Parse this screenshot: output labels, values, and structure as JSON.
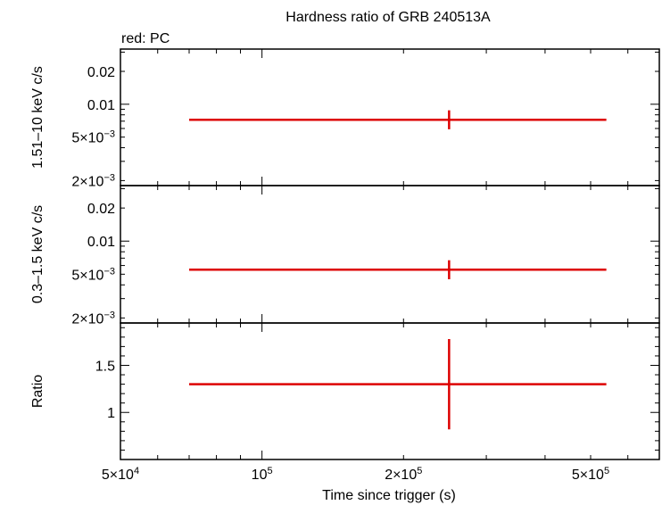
{
  "chart_data": {
    "type": "scatter",
    "title": "Hardness ratio of GRB 240513A",
    "subtitle": "red: PC",
    "xlabel": "Time since trigger (s)",
    "xscale": "log",
    "xlim": [
      50000,
      700000
    ],
    "x_tick_labels": [
      {
        "value": 50000,
        "mant": "5×10",
        "exp": "4"
      },
      {
        "value": 100000,
        "mant": "10",
        "exp": "5"
      },
      {
        "value": 200000,
        "mant": "2×10",
        "exp": "5"
      },
      {
        "value": 500000,
        "mant": "5×10",
        "exp": "5"
      }
    ],
    "color": "#dd0000",
    "panels": [
      {
        "id": "hard",
        "ylabel": "1.51–10 keV c/s",
        "yscale": "log",
        "ylim": [
          0.0018,
          0.032
        ],
        "y_tick_labels": [
          {
            "value": 0.02,
            "mant": "0.02",
            "exp": ""
          },
          {
            "value": 0.01,
            "mant": "0.01",
            "exp": ""
          },
          {
            "value": 0.005,
            "mant": "5×10",
            "exp": "−3"
          },
          {
            "value": 0.002,
            "mant": "2×10",
            "exp": "−3"
          }
        ],
        "points": [
          {
            "x": 250000,
            "xerr": [
              70000,
              540000
            ],
            "y": 0.0072,
            "yerr": [
              0.0059,
              0.0088
            ]
          }
        ]
      },
      {
        "id": "soft",
        "ylabel": "0.3–1.5 keV c/s",
        "yscale": "log",
        "ylim": [
          0.0018,
          0.032
        ],
        "y_tick_labels": [
          {
            "value": 0.02,
            "mant": "0.02",
            "exp": ""
          },
          {
            "value": 0.01,
            "mant": "0.01",
            "exp": ""
          },
          {
            "value": 0.005,
            "mant": "5×10",
            "exp": "−3"
          },
          {
            "value": 0.002,
            "mant": "2×10",
            "exp": "−3"
          }
        ],
        "points": [
          {
            "x": 250000,
            "xerr": [
              70000,
              540000
            ],
            "y": 0.0055,
            "yerr": [
              0.0045,
              0.0067
            ]
          }
        ]
      },
      {
        "id": "ratio",
        "ylabel": "Ratio",
        "yscale": "linear",
        "ylim": [
          0.5,
          1.95
        ],
        "y_tick_labels": [
          {
            "value": 1.5,
            "mant": "1.5",
            "exp": ""
          },
          {
            "value": 1,
            "mant": "1",
            "exp": ""
          }
        ],
        "points": [
          {
            "x": 250000,
            "xerr": [
              70000,
              540000
            ],
            "y": 1.3,
            "yerr": [
              0.82,
              1.78
            ]
          }
        ]
      }
    ]
  }
}
